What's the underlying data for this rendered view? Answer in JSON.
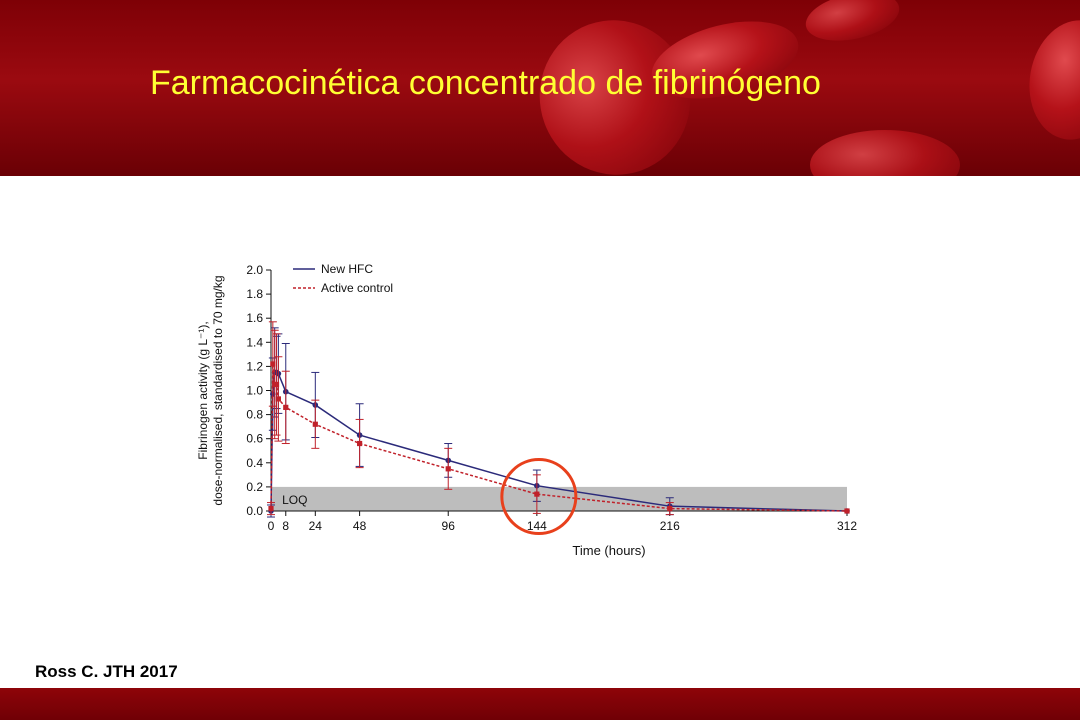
{
  "slide": {
    "title": "Farmacocinética  concentrado de fibrinógeno",
    "citation": "Ross C. JTH 2017"
  },
  "colors": {
    "header": "#8a0309",
    "title": "#ffff33",
    "hfc": "#2b2a7a",
    "control": "#c0212a",
    "highlight": "#e8401c",
    "loq_band": "#bdbdbd"
  },
  "chart_data": {
    "type": "line",
    "xlabel": "Time (hours)",
    "ylabel": "Fibrinogen activity (g L⁻¹), dose-normalised, standardised to 70 mg/kg",
    "ylabel_lines": [
      "Fibrinogen activity (g L⁻¹),",
      "dose-normalised, standardised to 70 mg/kg"
    ],
    "xticks": [
      0,
      8,
      24,
      48,
      96,
      144,
      216,
      312
    ],
    "yticks": [
      0.0,
      0.2,
      0.4,
      0.6,
      0.8,
      1.0,
      1.2,
      1.4,
      1.6,
      1.8,
      2.0
    ],
    "ytick_labels": [
      "0.0",
      "0.2",
      "0.4",
      "0.6",
      "0.8",
      "1.0",
      "1.2",
      "1.4",
      "1.6",
      "1.8",
      "2.0"
    ],
    "xlim": [
      0,
      312
    ],
    "ylim": [
      0,
      2.0
    ],
    "legend_position": "top-left",
    "loq": {
      "label": "LOQ",
      "range": [
        0,
        0.2
      ]
    },
    "highlight_x": 144,
    "series": [
      {
        "name": "New HFC",
        "style": "solid",
        "x": [
          0,
          1,
          2,
          3,
          4,
          8,
          24,
          48,
          96,
          144,
          216,
          312
        ],
        "y": [
          0.0,
          0.97,
          1.15,
          1.15,
          1.14,
          0.99,
          0.88,
          0.63,
          0.42,
          0.21,
          0.04,
          0.0
        ],
        "err": [
          0.05,
          0.3,
          0.37,
          0.3,
          0.33,
          0.4,
          0.27,
          0.26,
          0.14,
          0.13,
          0.07,
          0.0
        ]
      },
      {
        "name": "Active control",
        "style": "dashed",
        "x": [
          0,
          1,
          2,
          3,
          4,
          8,
          24,
          48,
          96,
          144,
          216,
          312
        ],
        "y": [
          0.02,
          1.22,
          1.05,
          1.05,
          0.93,
          0.86,
          0.72,
          0.56,
          0.35,
          0.14,
          0.02,
          0.0
        ],
        "err": [
          0.05,
          0.35,
          0.45,
          0.42,
          0.35,
          0.3,
          0.2,
          0.2,
          0.17,
          0.16,
          0.05,
          0.0
        ]
      }
    ]
  }
}
